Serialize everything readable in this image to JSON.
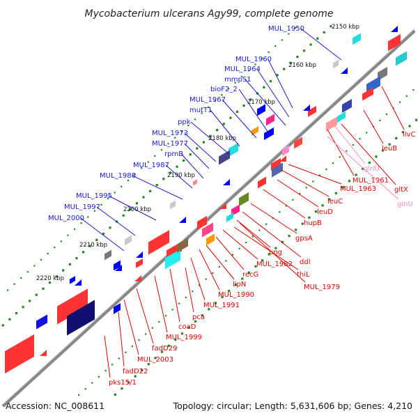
{
  "title": "Mycobacterium ulcerans Agy99, complete genome",
  "footer": {
    "accession": "Accession: NC_008611",
    "summary": "Topology: circular; Length: 5,631,606 bp; Genes: 4,210"
  },
  "ticks": [
    "2150 kbp",
    "2160 kbp",
    "2170 kbp",
    "2180 kbp",
    "2190 kbp",
    "2200 kbp",
    "2210 kbp",
    "2220 kbp"
  ],
  "colors": {
    "backbone": "#7a7a7a",
    "outer_label": "#1a1ad6",
    "inner_label": "#e00000",
    "pseudo_label": "#ff88bb",
    "gc_tick": "#1e8a1e"
  },
  "outer_genes": [
    "MUL_1950",
    "MUL_1960",
    "MUL_1964",
    "mmpS1",
    "bioF2_2",
    "MUL_1967",
    "mutT1",
    "ppk",
    "MUL_1973",
    "MUL_1977",
    "rpmB",
    "MUL_1987",
    "MUL_1988",
    "MUL_1995",
    "MUL_1997",
    "MUL_2000"
  ],
  "inner_genes": [
    "ilvC",
    "leuB",
    "glnU",
    "MUL_1961",
    "gltX",
    "glnU",
    "MUL_1963",
    "leuC",
    "leuD",
    "hupB",
    "gpsA",
    "ddl",
    "ung",
    "thiL",
    "MUL_1982",
    "MUL_1979",
    "recG",
    "lipN",
    "MUL_1990",
    "MUL_1991",
    "pca",
    "coaD",
    "MUL_1999",
    "fadD29",
    "MUL_2003",
    "fadD22",
    "pks15/1"
  ],
  "inner_gene_kinds": [
    "normal",
    "normal",
    "pseudo",
    "normal",
    "normal",
    "pseudo",
    "normal",
    "normal",
    "normal",
    "normal",
    "normal",
    "normal",
    "normal",
    "normal",
    "normal",
    "normal",
    "normal",
    "normal",
    "normal",
    "normal",
    "normal",
    "normal",
    "normal",
    "normal",
    "normal",
    "normal",
    "normal"
  ]
}
